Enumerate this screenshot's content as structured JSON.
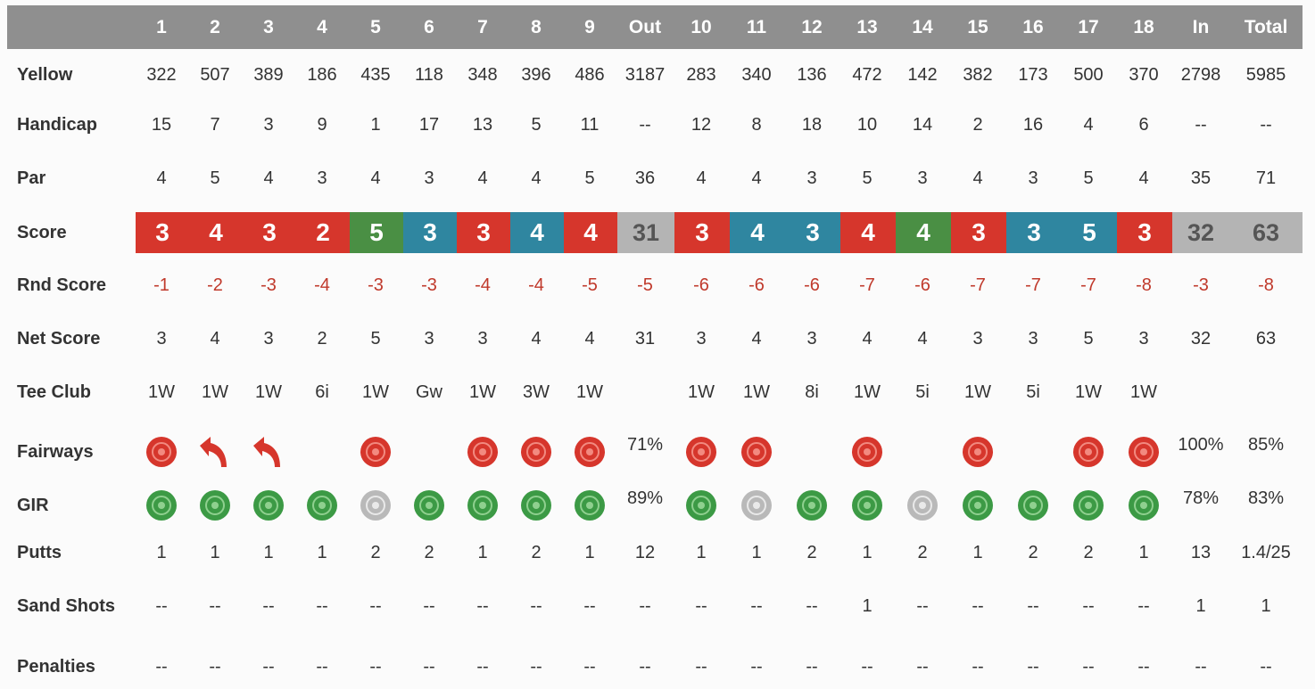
{
  "colors": {
    "header_bg": "#8f8f8f",
    "score_red": "#d6362c",
    "score_green": "#4a8f44",
    "score_blue": "#2f86a0",
    "score_grey": "#b4b4b4",
    "target_red": "#d6362c",
    "target_green": "#3c9a45",
    "target_grey": "#b9b9b9",
    "rnd_score_text": "#c0392b"
  },
  "header": [
    "1",
    "2",
    "3",
    "4",
    "5",
    "6",
    "7",
    "8",
    "9",
    "Out",
    "10",
    "11",
    "12",
    "13",
    "14",
    "15",
    "16",
    "17",
    "18",
    "In",
    "Total"
  ],
  "rows": {
    "yellow": {
      "label": "Yellow",
      "values": [
        "322",
        "507",
        "389",
        "186",
        "435",
        "118",
        "348",
        "396",
        "486",
        "3187",
        "283",
        "340",
        "136",
        "472",
        "142",
        "382",
        "173",
        "500",
        "370",
        "2798",
        "5985"
      ]
    },
    "handicap": {
      "label": "Handicap",
      "values": [
        "15",
        "7",
        "3",
        "9",
        "1",
        "17",
        "13",
        "5",
        "11",
        "--",
        "12",
        "8",
        "18",
        "10",
        "14",
        "2",
        "16",
        "4",
        "6",
        "--",
        "--"
      ]
    },
    "par": {
      "label": "Par",
      "values": [
        "4",
        "5",
        "4",
        "3",
        "4",
        "3",
        "4",
        "4",
        "5",
        "36",
        "4",
        "4",
        "3",
        "5",
        "3",
        "4",
        "3",
        "5",
        "4",
        "35",
        "71"
      ]
    },
    "score": {
      "label": "Score",
      "values": [
        "3",
        "4",
        "3",
        "2",
        "5",
        "3",
        "3",
        "4",
        "4",
        "31",
        "3",
        "4",
        "3",
        "4",
        "4",
        "3",
        "3",
        "5",
        "3",
        "32",
        "63"
      ],
      "styles": [
        "red",
        "red",
        "red",
        "red",
        "green",
        "blue",
        "red",
        "blue",
        "red",
        "grey",
        "red",
        "blue",
        "blue",
        "red",
        "green",
        "red",
        "blue",
        "blue",
        "red",
        "grey",
        "grey"
      ]
    },
    "rnd_score": {
      "label": "Rnd Score",
      "values": [
        "-1",
        "-2",
        "-3",
        "-4",
        "-3",
        "-3",
        "-4",
        "-4",
        "-5",
        "-5",
        "-6",
        "-6",
        "-6",
        "-7",
        "-6",
        "-7",
        "-7",
        "-7",
        "-8",
        "-3",
        "-8"
      ]
    },
    "net_score": {
      "label": "Net Score",
      "values": [
        "3",
        "4",
        "3",
        "2",
        "5",
        "3",
        "3",
        "4",
        "4",
        "31",
        "3",
        "4",
        "3",
        "4",
        "4",
        "3",
        "3",
        "5",
        "3",
        "32",
        "63"
      ]
    },
    "tee_club": {
      "label": "Tee Club",
      "values": [
        "1W",
        "1W",
        "1W",
        "6i",
        "1W",
        "Gw",
        "1W",
        "3W",
        "1W",
        "",
        "1W",
        "1W",
        "8i",
        "1W",
        "5i",
        "1W",
        "5i",
        "1W",
        "1W",
        "",
        ""
      ]
    },
    "fairways": {
      "label": "Fairways",
      "icons": [
        "target-red",
        "miss-left-arrow",
        "miss-left-arrow",
        "",
        "target-red",
        "",
        "target-red",
        "target-red",
        "target-red",
        "",
        "target-red",
        "target-red",
        "",
        "target-red",
        "",
        "target-red",
        "",
        "target-red",
        "target-red",
        "",
        ""
      ],
      "values": [
        "",
        "",
        "",
        "",
        "",
        "",
        "",
        "",
        "",
        "71%",
        "",
        "",
        "",
        "",
        "",
        "",
        "",
        "",
        "",
        "100%",
        "85%"
      ]
    },
    "gir": {
      "label": "GIR",
      "icons": [
        "target-green",
        "target-green",
        "target-green",
        "target-green",
        "target-grey",
        "target-green",
        "target-green",
        "target-green",
        "target-green",
        "",
        "target-green",
        "target-grey",
        "target-green",
        "target-green",
        "target-grey",
        "target-green",
        "target-green",
        "target-green",
        "target-green",
        "",
        ""
      ],
      "values": [
        "",
        "",
        "",
        "",
        "",
        "",
        "",
        "",
        "",
        "89%",
        "",
        "",
        "",
        "",
        "",
        "",
        "",
        "",
        "",
        "78%",
        "83%"
      ]
    },
    "putts": {
      "label": "Putts",
      "values": [
        "1",
        "1",
        "1",
        "1",
        "2",
        "2",
        "1",
        "2",
        "1",
        "12",
        "1",
        "1",
        "2",
        "1",
        "2",
        "1",
        "2",
        "2",
        "1",
        "13",
        "1.4/25"
      ]
    },
    "sand_shots": {
      "label": "Sand Shots",
      "values": [
        "--",
        "--",
        "--",
        "--",
        "--",
        "--",
        "--",
        "--",
        "--",
        "--",
        "--",
        "--",
        "--",
        "1",
        "--",
        "--",
        "--",
        "--",
        "--",
        "1",
        "1"
      ]
    },
    "penalties": {
      "label": "Penalties",
      "values": [
        "--",
        "--",
        "--",
        "--",
        "--",
        "--",
        "--",
        "--",
        "--",
        "--",
        "--",
        "--",
        "--",
        "--",
        "--",
        "--",
        "--",
        "--",
        "--",
        "--",
        "--"
      ]
    }
  }
}
